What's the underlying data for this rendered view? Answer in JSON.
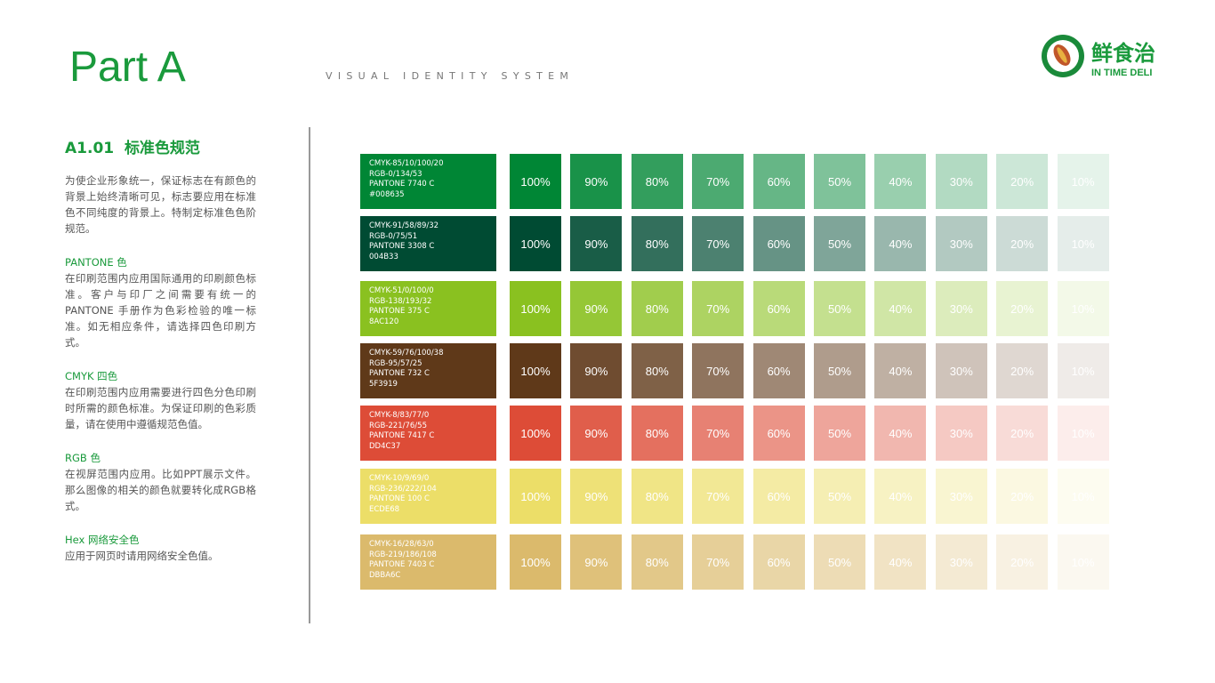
{
  "header": {
    "title": "Part A",
    "subtitle": "VISUAL IDENTITY SYSTEM",
    "logo_cn": "鲜食治",
    "logo_en": "IN TIME DELI"
  },
  "section": {
    "title": "A1.01  标准色规范",
    "intro": "为使企业形象统一，保证标志在有颜色的背景上始终清晰可见，标志要应用在标准色不同纯度的背景上。特制定标准色色阶规范。",
    "items": [
      {
        "heading": "PANTONE 色",
        "text": "在印刷范围内应用国际通用的印刷颜色标准。客户与印厂之间需要有统一的PANTONE 手册作为色彩检验的唯一标准。如无相应条件，请选择四色印刷方式。"
      },
      {
        "heading": "CMYK 四色",
        "text": "在印刷范围内应用需要进行四色分色印刷时所需的颜色标准。为保证印刷的色彩质量，请在使用中遵循规范色值。"
      },
      {
        "heading": "RGB 色",
        "text": "在视屏范围内应用。比如PPT展示文件。那么图像的相关的颜色就要转化成RGB格式。"
      },
      {
        "heading": "Hex 网络安全色",
        "text": "应用于网页时请用网络安全色值。"
      }
    ]
  },
  "tints": [
    "100%",
    "90%",
    "80%",
    "70%",
    "60%",
    "50%",
    "40%",
    "30%",
    "20%",
    "10%"
  ],
  "colors": [
    {
      "color": "#008635",
      "spec": [
        "CMYK-85/10/100/20",
        "RGB-0/134/53",
        "PANTONE 7740 C",
        "#008635"
      ]
    },
    {
      "color": "#004B33",
      "spec": [
        "CMYK-91/58/89/32",
        "RGB-0/75/51",
        "PANTONE 3308 C",
        "004B33"
      ]
    },
    {
      "color": "#8AC120",
      "spec": [
        "CMYK-51/0/100/0",
        "RGB-138/193/32",
        "PANTONE 375 C",
        "8AC120"
      ]
    },
    {
      "color": "#5F3919",
      "spec": [
        "CMYK-59/76/100/38",
        "RGB-95/57/25",
        "PANTONE 732 C",
        "5F3919"
      ]
    },
    {
      "color": "#DD4C37",
      "spec": [
        "CMYK-8/83/77/0",
        "RGB-221/76/55",
        "PANTONE 7417 C",
        "DD4C37"
      ]
    },
    {
      "color": "#ECDE68",
      "spec": [
        "CMYK-10/9/69/0",
        "RGB-236/222/104",
        "PANTONE 100 C",
        "ECDE68"
      ]
    },
    {
      "color": "#DBBA6C",
      "spec": [
        "CMYK-16/28/63/0",
        "RGB-219/186/108",
        "PANTONE 7403 C",
        "DBBA6C"
      ]
    }
  ]
}
